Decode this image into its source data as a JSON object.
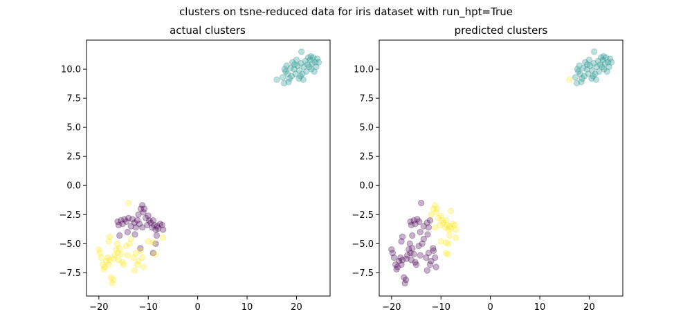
{
  "figure": {
    "suptitle": "clusters on tsne-reduced data for iris dataset with run_hpt=True"
  },
  "colors": {
    "purple": "#440154",
    "teal": "#21918c",
    "yellow": "#fde725"
  },
  "chart_data": [
    {
      "type": "scatter",
      "title": "actual clusters",
      "xlabel": "",
      "ylabel": "",
      "xlim": [
        -22.5,
        26.8
      ],
      "ylim": [
        -9.5,
        12.5
      ],
      "xticks": [
        -20,
        -10,
        0,
        10,
        20
      ],
      "yticks": [
        -7.5,
        -5.0,
        -2.5,
        0.0,
        2.5,
        5.0,
        7.5,
        10.0
      ],
      "xtick_labels": [
        "−20",
        "−10",
        "0",
        "10",
        "20"
      ],
      "ytick_labels": [
        "−7.5",
        "−5.0",
        "−2.5",
        "0.0",
        "2.5",
        "5.0",
        "7.5",
        "10.0"
      ],
      "marker_alpha": 0.3,
      "series": [
        {
          "color": "#21918c",
          "points": [
            [
              16.0,
              9.1
            ],
            [
              17.2,
              9.3
            ],
            [
              17.5,
              8.8
            ],
            [
              18.0,
              10.3
            ],
            [
              17.8,
              9.8
            ],
            [
              18.4,
              8.9
            ],
            [
              18.2,
              9.6
            ],
            [
              18.8,
              10.1
            ],
            [
              19.0,
              9.4
            ],
            [
              19.2,
              10.6
            ],
            [
              19.5,
              10.0
            ],
            [
              19.8,
              9.6
            ],
            [
              20.0,
              10.8
            ],
            [
              20.2,
              10.3
            ],
            [
              20.5,
              9.2
            ],
            [
              20.6,
              9.9
            ],
            [
              20.9,
              10.5
            ],
            [
              21.0,
              11.5
            ],
            [
              21.2,
              9.6
            ],
            [
              21.4,
              9.1
            ],
            [
              21.5,
              10.2
            ],
            [
              21.8,
              10.7
            ],
            [
              22.0,
              9.8
            ],
            [
              22.2,
              10.4
            ],
            [
              22.4,
              11.0
            ],
            [
              22.6,
              10.2
            ],
            [
              22.8,
              10.8
            ],
            [
              23.0,
              10.0
            ],
            [
              23.2,
              10.5
            ],
            [
              23.4,
              11.0
            ],
            [
              23.6,
              9.8
            ],
            [
              23.8,
              10.6
            ],
            [
              24.0,
              10.2
            ],
            [
              24.2,
              10.9
            ],
            [
              24.5,
              10.6
            ],
            [
              17.6,
              10.0
            ],
            [
              18.6,
              9.2
            ],
            [
              19.6,
              10.4
            ],
            [
              20.8,
              9.4
            ],
            [
              22.9,
              11.1
            ]
          ]
        },
        {
          "color": "#440154",
          "points": [
            [
              -16.2,
              -3.1
            ],
            [
              -16.0,
              -3.4
            ],
            [
              -15.5,
              -3.0
            ],
            [
              -15.2,
              -3.3
            ],
            [
              -14.8,
              -2.9
            ],
            [
              -14.4,
              -3.1
            ],
            [
              -14.0,
              -2.8
            ],
            [
              -13.5,
              -3.5
            ],
            [
              -13.2,
              -2.9
            ],
            [
              -12.8,
              -3.2
            ],
            [
              -12.5,
              -3.6
            ],
            [
              -12.2,
              -3.0
            ],
            [
              -12.0,
              -2.5
            ],
            [
              -11.8,
              -3.3
            ],
            [
              -11.5,
              -2.0
            ],
            [
              -11.2,
              -1.7
            ],
            [
              -11.0,
              -2.3
            ],
            [
              -10.8,
              -2.0
            ],
            [
              -10.5,
              -2.8
            ],
            [
              -10.2,
              -3.4
            ],
            [
              -10.0,
              -2.6
            ],
            [
              -9.8,
              -3.0
            ],
            [
              -9.5,
              -3.2
            ],
            [
              -9.2,
              -3.6
            ],
            [
              -9.0,
              -3.0
            ],
            [
              -8.8,
              -3.4
            ],
            [
              -8.5,
              -3.8
            ],
            [
              -8.2,
              -3.5
            ],
            [
              -8.0,
              -3.7
            ],
            [
              -7.6,
              -3.3
            ],
            [
              -7.2,
              -3.4
            ],
            [
              -7.0,
              -3.8
            ],
            [
              -8.3,
              -4.3
            ],
            [
              -8.5,
              -5.0
            ],
            [
              -9.0,
              -5.8
            ],
            [
              -11.6,
              -5.4
            ],
            [
              -15.8,
              -4.3
            ],
            [
              -14.2,
              -4.0
            ],
            [
              -11.2,
              -3.6
            ],
            [
              -12.7,
              -4.2
            ]
          ]
        },
        {
          "color": "#fde725",
          "points": [
            [
              -20.0,
              -5.5
            ],
            [
              -19.8,
              -5.8
            ],
            [
              -19.5,
              -6.2
            ],
            [
              -19.2,
              -6.8
            ],
            [
              -19.0,
              -7.2
            ],
            [
              -18.8,
              -7.0
            ],
            [
              -18.5,
              -6.5
            ],
            [
              -18.2,
              -6.2
            ],
            [
              -18.0,
              -6.8
            ],
            [
              -17.8,
              -6.4
            ],
            [
              -17.5,
              -7.9
            ],
            [
              -17.3,
              -8.4
            ],
            [
              -17.1,
              -8.1
            ],
            [
              -17.0,
              -6.3
            ],
            [
              -16.8,
              -6.0
            ],
            [
              -16.5,
              -5.5
            ],
            [
              -16.2,
              -5.8
            ],
            [
              -16.0,
              -6.4
            ],
            [
              -15.8,
              -5.4
            ],
            [
              -15.5,
              -5.9
            ],
            [
              -15.2,
              -6.6
            ],
            [
              -15.0,
              -6.8
            ],
            [
              -14.5,
              -5.2
            ],
            [
              -14.2,
              -6.0
            ],
            [
              -14.0,
              -1.5
            ],
            [
              -13.8,
              -5.0
            ],
            [
              -13.5,
              -4.6
            ],
            [
              -13.0,
              -6.2
            ],
            [
              -12.8,
              -7.3
            ],
            [
              -12.5,
              -5.8
            ],
            [
              -12.2,
              -6.8
            ],
            [
              -12.0,
              -6.5
            ],
            [
              -11.5,
              -5.6
            ],
            [
              -11.2,
              -6.2
            ],
            [
              -11.0,
              -7.0
            ],
            [
              -10.0,
              -4.8
            ],
            [
              -9.0,
              -4.9
            ],
            [
              -8.6,
              -5.9
            ],
            [
              -7.0,
              -4.5
            ],
            [
              -18.0,
              -4.8
            ],
            [
              -17.8,
              -4.4
            ],
            [
              -16.3,
              -5.0
            ]
          ]
        }
      ]
    },
    {
      "type": "scatter",
      "title": "predicted clusters",
      "xlabel": "",
      "ylabel": "",
      "xlim": [
        -22.5,
        26.8
      ],
      "ylim": [
        -9.5,
        12.5
      ],
      "xticks": [
        -20,
        -10,
        0,
        10,
        20
      ],
      "yticks": [
        -7.5,
        -5.0,
        -2.5,
        0.0,
        2.5,
        5.0,
        7.5,
        10.0
      ],
      "xtick_labels": [
        "−20",
        "−10",
        "0",
        "10",
        "20"
      ],
      "ytick_labels": [
        "−7.5",
        "−5.0",
        "−2.5",
        "0.0",
        "2.5",
        "5.0",
        "7.5",
        "10.0"
      ],
      "marker_alpha": 0.3,
      "series": [
        {
          "color": "#21918c",
          "points": [
            [
              17.2,
              9.3
            ],
            [
              17.5,
              8.8
            ],
            [
              18.0,
              10.3
            ],
            [
              17.8,
              9.8
            ],
            [
              18.4,
              8.9
            ],
            [
              18.2,
              9.6
            ],
            [
              18.8,
              10.1
            ],
            [
              19.0,
              9.4
            ],
            [
              19.2,
              10.6
            ],
            [
              19.5,
              10.0
            ],
            [
              19.8,
              9.6
            ],
            [
              20.0,
              10.8
            ],
            [
              20.2,
              10.3
            ],
            [
              20.5,
              9.2
            ],
            [
              20.6,
              9.9
            ],
            [
              20.9,
              10.5
            ],
            [
              21.0,
              11.5
            ],
            [
              21.2,
              9.6
            ],
            [
              21.4,
              9.1
            ],
            [
              21.5,
              10.2
            ],
            [
              21.8,
              10.7
            ],
            [
              22.0,
              9.8
            ],
            [
              22.2,
              10.4
            ],
            [
              22.4,
              11.0
            ],
            [
              22.6,
              10.2
            ],
            [
              22.8,
              10.8
            ],
            [
              23.0,
              10.0
            ],
            [
              23.2,
              10.5
            ],
            [
              23.4,
              11.0
            ],
            [
              23.6,
              9.8
            ],
            [
              23.8,
              10.6
            ],
            [
              24.0,
              10.2
            ],
            [
              24.2,
              10.9
            ],
            [
              24.5,
              10.6
            ],
            [
              17.6,
              10.0
            ],
            [
              18.6,
              9.2
            ],
            [
              19.6,
              10.4
            ],
            [
              20.8,
              9.4
            ],
            [
              22.9,
              11.1
            ]
          ]
        },
        {
          "color": "#440154",
          "points": [
            [
              -20.0,
              -5.5
            ],
            [
              -19.8,
              -5.8
            ],
            [
              -19.5,
              -6.2
            ],
            [
              -19.2,
              -6.8
            ],
            [
              -19.0,
              -7.2
            ],
            [
              -18.8,
              -7.0
            ],
            [
              -18.5,
              -6.5
            ],
            [
              -18.2,
              -6.2
            ],
            [
              -18.0,
              -6.8
            ],
            [
              -17.8,
              -6.4
            ],
            [
              -17.5,
              -7.9
            ],
            [
              -17.3,
              -8.4
            ],
            [
              -17.1,
              -8.1
            ],
            [
              -17.0,
              -6.3
            ],
            [
              -16.8,
              -6.0
            ],
            [
              -16.5,
              -5.5
            ],
            [
              -16.2,
              -5.8
            ],
            [
              -16.0,
              -6.4
            ],
            [
              -15.8,
              -5.4
            ],
            [
              -15.5,
              -5.9
            ],
            [
              -15.2,
              -6.6
            ],
            [
              -15.0,
              -6.8
            ],
            [
              -14.5,
              -5.2
            ],
            [
              -14.2,
              -6.0
            ],
            [
              -14.0,
              -1.5
            ],
            [
              -13.8,
              -5.0
            ],
            [
              -13.5,
              -4.6
            ],
            [
              -13.0,
              -6.2
            ],
            [
              -12.8,
              -7.3
            ],
            [
              -12.5,
              -5.8
            ],
            [
              -12.2,
              -6.8
            ],
            [
              -12.0,
              -6.5
            ],
            [
              -11.5,
              -5.6
            ],
            [
              -11.2,
              -6.2
            ],
            [
              -11.0,
              -7.0
            ],
            [
              -16.2,
              -3.1
            ],
            [
              -16.0,
              -3.4
            ],
            [
              -15.5,
              -3.0
            ],
            [
              -15.2,
              -3.3
            ],
            [
              -14.8,
              -2.9
            ],
            [
              -14.4,
              -3.1
            ],
            [
              -13.5,
              -3.5
            ],
            [
              -12.8,
              -3.2
            ],
            [
              -12.5,
              -3.6
            ],
            [
              -12.2,
              -3.0
            ],
            [
              -18.0,
              -4.8
            ],
            [
              -17.8,
              -4.4
            ],
            [
              -16.3,
              -5.0
            ],
            [
              -15.8,
              -4.3
            ],
            [
              -14.2,
              -4.0
            ],
            [
              -12.7,
              -4.2
            ],
            [
              -11.6,
              -5.4
            ]
          ]
        },
        {
          "color": "#fde725",
          "points": [
            [
              16.0,
              9.1
            ],
            [
              -12.0,
              -2.5
            ],
            [
              -11.5,
              -2.0
            ],
            [
              -11.2,
              -1.7
            ],
            [
              -11.0,
              -2.3
            ],
            [
              -10.8,
              -2.0
            ],
            [
              -10.5,
              -2.8
            ],
            [
              -10.2,
              -3.4
            ],
            [
              -10.0,
              -2.6
            ],
            [
              -9.8,
              -3.0
            ],
            [
              -9.5,
              -3.2
            ],
            [
              -9.2,
              -3.6
            ],
            [
              -9.0,
              -3.0
            ],
            [
              -8.8,
              -3.4
            ],
            [
              -8.5,
              -3.8
            ],
            [
              -8.2,
              -3.5
            ],
            [
              -8.0,
              -3.7
            ],
            [
              -7.6,
              -3.3
            ],
            [
              -7.2,
              -3.4
            ],
            [
              -7.0,
              -3.8
            ],
            [
              -8.3,
              -4.3
            ],
            [
              -8.5,
              -5.0
            ],
            [
              -9.0,
              -5.8
            ],
            [
              -10.0,
              -4.8
            ],
            [
              -9.0,
              -4.9
            ],
            [
              -8.6,
              -5.9
            ],
            [
              -7.0,
              -4.5
            ],
            [
              -11.2,
              -3.6
            ],
            [
              -8.0,
              -2.2
            ]
          ]
        }
      ]
    }
  ]
}
